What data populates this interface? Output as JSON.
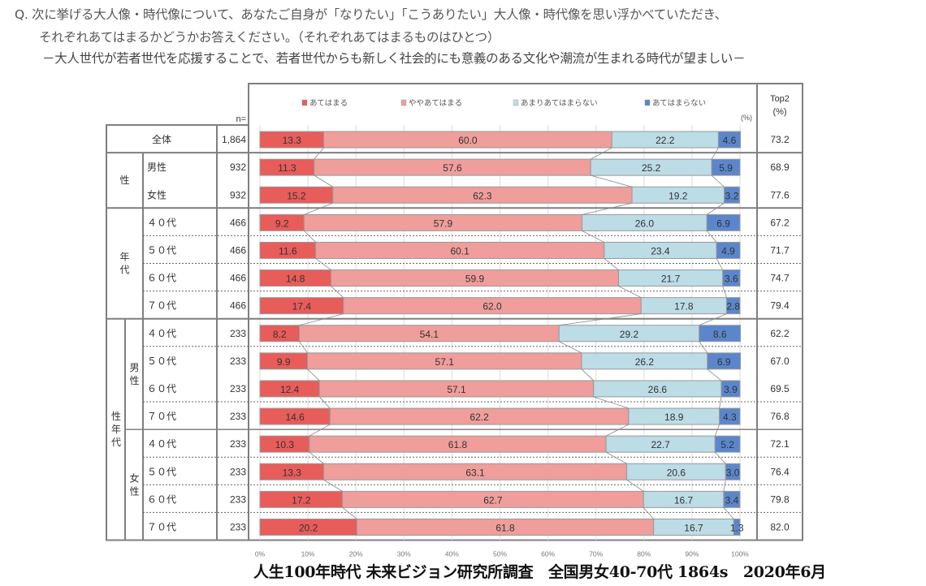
{
  "question": {
    "line1": "Q. 次に挙げる大人像・時代像について、あなたご自身が「なりたい」「こうありたい」大人像・時代像を思い浮かべていただき、",
    "line2": "それぞれあてはまるかどうかお答えください。（それぞれあてはまるものはひとつ）",
    "line3": "－大人世代が若者世代を応援することで、若者世代からも新しく社会的にも意義のある文化や潮流が生まれる時代が望ましい－"
  },
  "footer": "人生100年時代 未来ビジョン研究所調査　全国男女40-70代 1864s　2020年6月",
  "chart_data": {
    "type": "bar",
    "orientation": "horizontal",
    "stacked": true,
    "percent": true,
    "unit_label": "(%)",
    "n_header": "n=",
    "top2_header": [
      "Top2",
      "(%)"
    ],
    "xlim": [
      0,
      100
    ],
    "x_ticks": [
      "0%",
      "10%",
      "20%",
      "30%",
      "40%",
      "50%",
      "60%",
      "70%",
      "80%",
      "90%",
      "100%"
    ],
    "grid": true,
    "legend_position": "top",
    "series": [
      {
        "name": "あてはまる",
        "color": "#e85c5a"
      },
      {
        "name": "ややあてはまる",
        "color": "#ef9e9b"
      },
      {
        "name": "あまりあてはまらない",
        "color": "#bcdce6"
      },
      {
        "name": "あてはまらない",
        "color": "#5b86cc"
      }
    ],
    "groups": [
      {
        "label": "",
        "span": 1,
        "sub": [
          {
            "label": "全体",
            "span": 1
          }
        ]
      },
      {
        "label": "性",
        "span": 2,
        "sub": [
          {
            "label": "",
            "span": 2
          }
        ]
      },
      {
        "label": "年代",
        "span": 4,
        "sub": [
          {
            "label": "",
            "span": 4
          }
        ]
      },
      {
        "label": "性年代",
        "span": 8,
        "sub": [
          {
            "label": "男性",
            "span": 4
          },
          {
            "label": "女性",
            "span": 4
          }
        ]
      }
    ],
    "rows": [
      {
        "label": "全体",
        "n": "1,864",
        "values": [
          13.3,
          60.0,
          22.2,
          4.6
        ],
        "top2": "73.2",
        "full": true
      },
      {
        "label": "男性",
        "n": "932",
        "values": [
          11.3,
          57.6,
          25.2,
          5.9
        ],
        "top2": "68.9"
      },
      {
        "label": "女性",
        "n": "932",
        "values": [
          15.2,
          62.3,
          19.2,
          3.2
        ],
        "top2": "77.6"
      },
      {
        "label": "４０代",
        "n": "466",
        "values": [
          9.2,
          57.9,
          26.0,
          6.9
        ],
        "top2": "67.2"
      },
      {
        "label": "５０代",
        "n": "466",
        "values": [
          11.6,
          60.1,
          23.4,
          4.9
        ],
        "top2": "71.7"
      },
      {
        "label": "６０代",
        "n": "466",
        "values": [
          14.8,
          59.9,
          21.7,
          3.6
        ],
        "top2": "74.7"
      },
      {
        "label": "７０代",
        "n": "466",
        "values": [
          17.4,
          62.0,
          17.8,
          2.8
        ],
        "top2": "79.4"
      },
      {
        "label": "４０代",
        "n": "233",
        "values": [
          8.2,
          54.1,
          29.2,
          8.6
        ],
        "top2": "62.2"
      },
      {
        "label": "５０代",
        "n": "233",
        "values": [
          9.9,
          57.1,
          26.2,
          6.9
        ],
        "top2": "67.0"
      },
      {
        "label": "６０代",
        "n": "233",
        "values": [
          12.4,
          57.1,
          26.6,
          3.9
        ],
        "top2": "69.5"
      },
      {
        "label": "７０代",
        "n": "233",
        "values": [
          14.6,
          62.2,
          18.9,
          4.3
        ],
        "top2": "76.8"
      },
      {
        "label": "４０代",
        "n": "233",
        "values": [
          10.3,
          61.8,
          22.7,
          5.2
        ],
        "top2": "72.1"
      },
      {
        "label": "５０代",
        "n": "233",
        "values": [
          13.3,
          63.1,
          20.6,
          3.0
        ],
        "top2": "76.4"
      },
      {
        "label": "６０代",
        "n": "233",
        "values": [
          17.2,
          62.7,
          16.7,
          3.4
        ],
        "top2": "79.8"
      },
      {
        "label": "７０代",
        "n": "233",
        "values": [
          20.2,
          61.8,
          16.7,
          1.3
        ],
        "top2": "82.0"
      }
    ]
  }
}
